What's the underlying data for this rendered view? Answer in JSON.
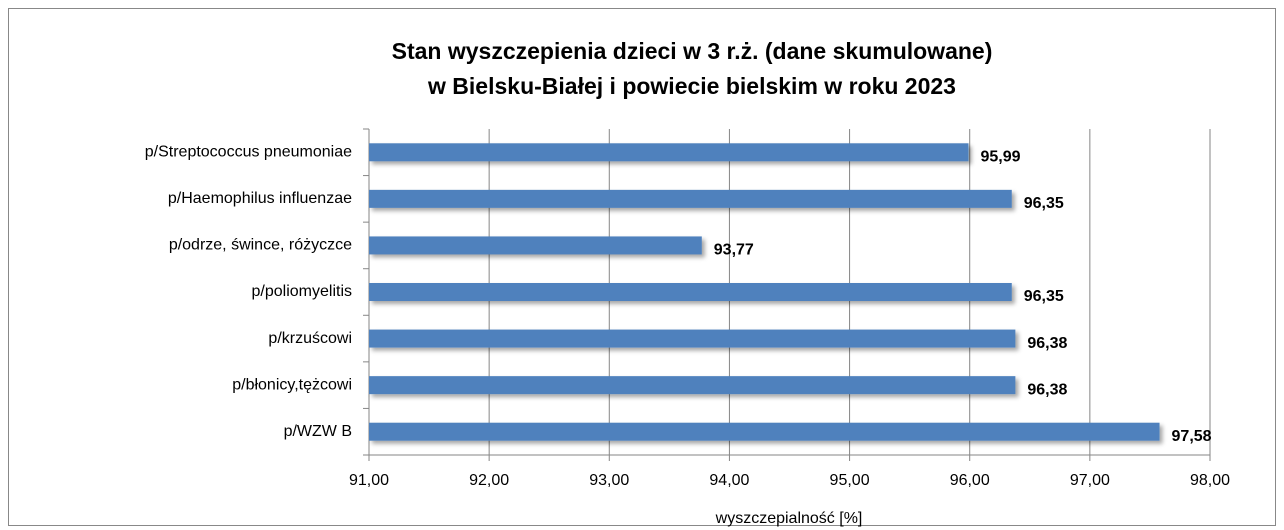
{
  "chart_data": {
    "type": "bar",
    "orientation": "horizontal",
    "title": [
      "Stan wyszczepienia dzieci w 3 r.ż. (dane skumulowane)",
      "w Bielsku-Białej i powiecie bielskim w roku 2023"
    ],
    "x_label": "wyszczepialność [%]",
    "categories": [
      "p/Streptococcus pneumoniae",
      "p/Haemophilus influenzae",
      "p/odrze, śwince, różyczce",
      "p/poliomyelitis",
      "p/krzuścowi",
      "p/błonicy,tężcowi",
      "p/WZW B"
    ],
    "values": [
      95.99,
      96.35,
      93.77,
      96.35,
      96.38,
      96.38,
      97.58
    ],
    "value_labels": [
      "95,99",
      "96,35",
      "93,77",
      "96,35",
      "96,38",
      "96,38",
      "97,58"
    ],
    "color": "#4f81bd",
    "xlim": [
      91,
      98
    ],
    "xticks": [
      {
        "value": 91,
        "label": "91,00"
      },
      {
        "value": 92,
        "label": "92,00"
      },
      {
        "value": 93,
        "label": "93,00"
      },
      {
        "value": 94,
        "label": "94,00"
      },
      {
        "value": 95,
        "label": "95,00"
      },
      {
        "value": 96,
        "label": "96,00"
      },
      {
        "value": 97,
        "label": "97,00"
      },
      {
        "value": 98,
        "label": "98,00"
      }
    ],
    "grid": true
  }
}
